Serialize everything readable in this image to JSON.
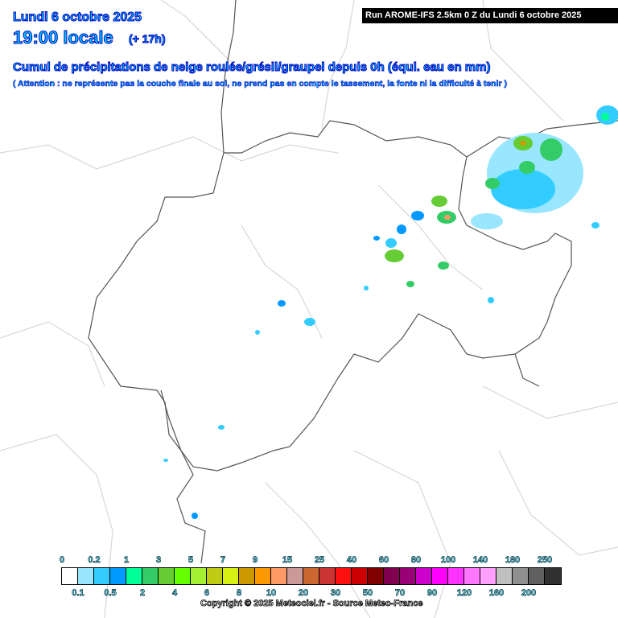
{
  "header": {
    "date": "Lundi 6 octobre 2025",
    "time": "19:00 locale",
    "lead": "(+ 17h)",
    "title": "Cumul de précipitations de neige roulée/grésil/graupel depuis 0h (équi. eau en mm)",
    "note": "( Attention : ne représente pas la couche finale au sol, ne prend pas en compte le tassement, la fonte ni la difficulté à tenir )",
    "run": "Run AROME-IFS 2.5km 0 Z du Lundi 6 octobre 2025"
  },
  "legend": {
    "unit": "mm",
    "thresholds": [
      "0",
      "0.1",
      "0.2",
      "0.5",
      "1",
      "2",
      "3",
      "4",
      "5",
      "6",
      "7",
      "8",
      "9",
      "10",
      "15",
      "20",
      "25",
      "30",
      "40",
      "50",
      "60",
      "70",
      "80",
      "90",
      "100",
      "120",
      "140",
      "160",
      "180",
      "200",
      "250"
    ],
    "colors": [
      "#ffffff",
      "#99e6ff",
      "#33ccff",
      "#0099ff",
      "#00ff99",
      "#33cc66",
      "#66cc33",
      "#66ff00",
      "#a6f033",
      "#bfcc14",
      "#d9f014",
      "#cc9900",
      "#ff9900",
      "#ff9966",
      "#cc9999",
      "#cc6633",
      "#cc3333",
      "#ff1010",
      "#cc0000",
      "#800000",
      "#800050",
      "#990077",
      "#cc00cc",
      "#ff00ff",
      "#ff33ff",
      "#ff77ff",
      "#ffa0ff",
      "#c0c0c0",
      "#909090",
      "#606060",
      "#303030"
    ]
  },
  "copyright": "Copyright © 2025 Meteociel.fr - Source Meteo-France"
}
